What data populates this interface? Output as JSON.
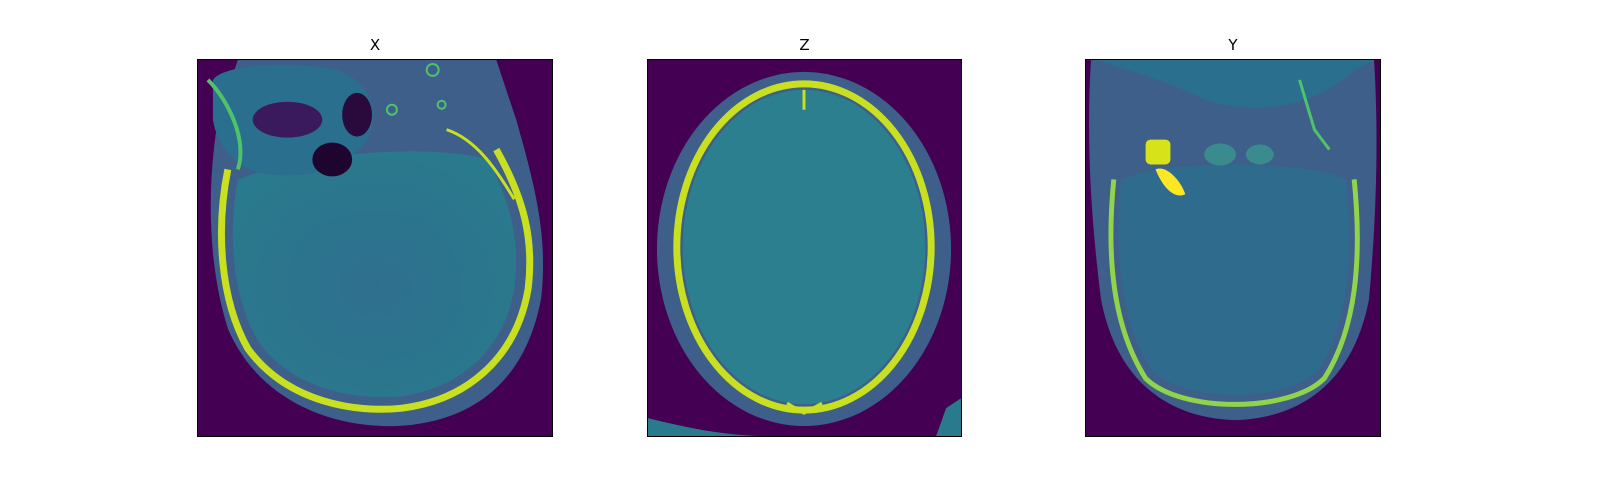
{
  "panels": [
    {
      "title": "X"
    },
    {
      "title": "Z"
    },
    {
      "title": "Y"
    }
  ],
  "colormap": {
    "background": "#440154",
    "soft_tissue": "#3b528b",
    "brain": "#2c728e",
    "bone": "#d8e219",
    "bone_bright": "#fde725"
  }
}
